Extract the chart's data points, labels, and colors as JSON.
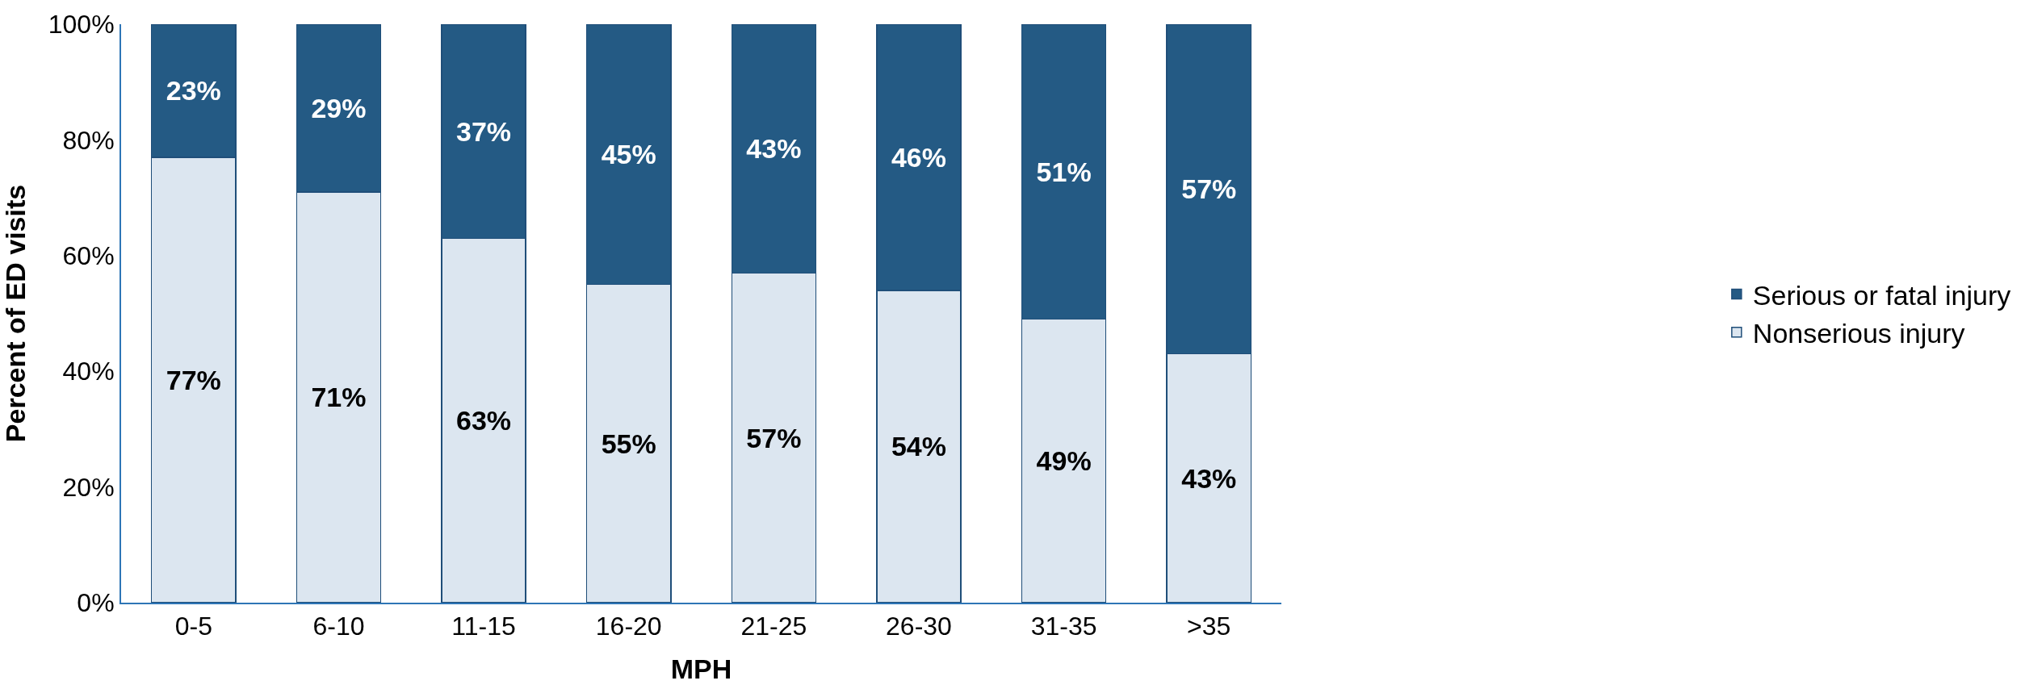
{
  "chart_data": {
    "type": "bar",
    "stacked": true,
    "xlabel": "MPH",
    "ylabel": "Percent of ED visits",
    "categories": [
      "0-5",
      "6-10",
      "11-15",
      "16-20",
      "21-25",
      "26-30",
      "31-35",
      ">35"
    ],
    "series": [
      {
        "name": "Nonserious injury",
        "color": "#dce6f0",
        "values": [
          77,
          71,
          63,
          55,
          57,
          54,
          49,
          43
        ],
        "value_labels": [
          "77%",
          "71%",
          "63%",
          "55%",
          "57%",
          "54%",
          "49%",
          "43%"
        ]
      },
      {
        "name": "Serious or fatal injury",
        "color": "#245a84",
        "values": [
          23,
          29,
          37,
          45,
          43,
          46,
          51,
          57
        ],
        "value_labels": [
          "23%",
          "29%",
          "37%",
          "45%",
          "43%",
          "46%",
          "51%",
          "57%"
        ]
      }
    ],
    "ylim": [
      0,
      100
    ],
    "yticks": [
      {
        "value": 0,
        "label": "0%"
      },
      {
        "value": 20,
        "label": "20%"
      },
      {
        "value": 40,
        "label": "40%"
      },
      {
        "value": 60,
        "label": "60%"
      },
      {
        "value": 80,
        "label": "80%"
      },
      {
        "value": 100,
        "label": "100%"
      }
    ],
    "grid": false,
    "legend": "right"
  }
}
